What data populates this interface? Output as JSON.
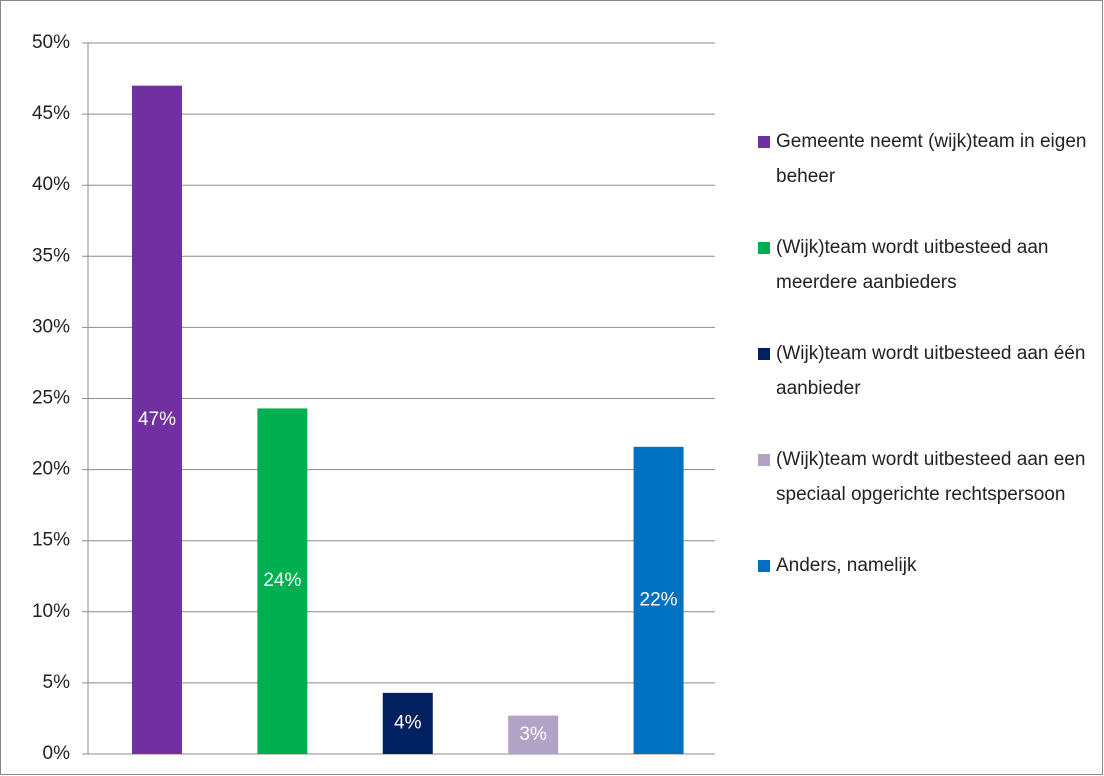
{
  "chart_data": {
    "type": "bar",
    "categories": [
      "Gemeente neemt (wijk)team in eigen beheer",
      "(Wijk)team wordt uitbesteed aan meerdere aanbieders",
      "(Wijk)team wordt uitbesteed aan één aanbieder",
      "(Wijk)team wordt uitbesteed aan een speciaal opgerichte rechtspersoon",
      "Anders, namelijk"
    ],
    "values": [
      47,
      24.3,
      4.3,
      2.7,
      21.6
    ],
    "value_labels": [
      "47%",
      "24%",
      "4%",
      "3%",
      "22%"
    ],
    "colors": [
      "#7030a0",
      "#00b050",
      "#002060",
      "#b3a2c7",
      "#0070c0"
    ],
    "ylim": [
      0,
      50
    ],
    "yticks": [
      {
        "value": 0,
        "label": "0%"
      },
      {
        "value": 5,
        "label": "5%"
      },
      {
        "value": 10,
        "label": "10%"
      },
      {
        "value": 15,
        "label": "15%"
      },
      {
        "value": 20,
        "label": "20%"
      },
      {
        "value": 25,
        "label": "25%"
      },
      {
        "value": 30,
        "label": "30%"
      },
      {
        "value": 35,
        "label": "35%"
      },
      {
        "value": 40,
        "label": "40%"
      },
      {
        "value": 45,
        "label": "45%"
      },
      {
        "value": 50,
        "label": "50%"
      }
    ],
    "grid": true,
    "legend": "right"
  }
}
